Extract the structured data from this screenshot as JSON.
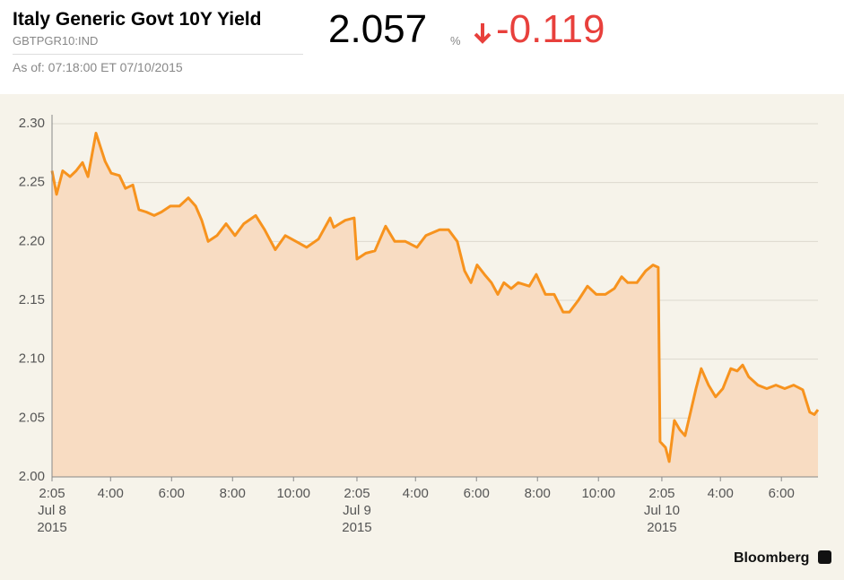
{
  "header": {
    "title": "Italy Generic Govt 10Y Yield",
    "ticker": "GBTPGR10:IND",
    "as_of": "As of: 07:18:00 ET 07/10/2015",
    "last": "2.057",
    "unit": "%",
    "change": "-0.119",
    "brand": "Bloomberg"
  },
  "chart_data": {
    "type": "line",
    "x": [
      0,
      0.15,
      0.35,
      0.59,
      0.79,
      1.0,
      1.18,
      1.32,
      1.44,
      1.59,
      1.74,
      1.94,
      2.21,
      2.41,
      2.65,
      2.85,
      3.09,
      3.35,
      3.59,
      3.88,
      4.18,
      4.47,
      4.71,
      4.91,
      5.12,
      5.41,
      5.71,
      6.0,
      6.29,
      6.68,
      6.97,
      7.32,
      7.65,
      8.0,
      8.35,
      8.74,
      9.12,
      9.24,
      9.62,
      9.91,
      10.0,
      10.29,
      10.59,
      10.94,
      11.24,
      11.59,
      11.97,
      12.26,
      12.71,
      13.0,
      13.29,
      13.53,
      13.74,
      13.94,
      14.18,
      14.41,
      14.62,
      14.82,
      15.06,
      15.29,
      15.65,
      15.88,
      16.18,
      16.47,
      16.76,
      16.97,
      17.26,
      17.56,
      17.85,
      18.15,
      18.44,
      18.68,
      18.88,
      19.18,
      19.47,
      19.71,
      19.88,
      19.94,
      20.12,
      20.24,
      20.41,
      20.59,
      20.76,
      20.94,
      21.12,
      21.29,
      21.53,
      21.76,
      22.0,
      22.26,
      22.47,
      22.65,
      22.85,
      23.15,
      23.44,
      23.74,
      24.03,
      24.32,
      24.62,
      24.85,
      25.0,
      25.12
    ],
    "values": [
      2.26,
      2.24,
      2.26,
      2.255,
      2.26,
      2.267,
      2.255,
      2.275,
      2.292,
      2.28,
      2.268,
      2.258,
      2.256,
      2.245,
      2.248,
      2.227,
      2.225,
      2.222,
      2.225,
      2.23,
      2.23,
      2.237,
      2.23,
      2.218,
      2.2,
      2.205,
      2.215,
      2.205,
      2.215,
      2.222,
      2.21,
      2.193,
      2.205,
      2.2,
      2.195,
      2.202,
      2.22,
      2.212,
      2.218,
      2.22,
      2.185,
      2.19,
      2.192,
      2.213,
      2.2,
      2.2,
      2.195,
      2.205,
      2.21,
      2.21,
      2.2,
      2.175,
      2.165,
      2.18,
      2.172,
      2.165,
      2.155,
      2.165,
      2.16,
      2.165,
      2.162,
      2.172,
      2.155,
      2.155,
      2.14,
      2.14,
      2.15,
      2.162,
      2.155,
      2.155,
      2.16,
      2.17,
      2.165,
      2.165,
      2.175,
      2.18,
      2.178,
      2.03,
      2.025,
      2.013,
      2.048,
      2.04,
      2.035,
      2.055,
      2.075,
      2.092,
      2.078,
      2.068,
      2.075,
      2.092,
      2.09,
      2.095,
      2.085,
      2.078,
      2.075,
      2.078,
      2.075,
      2.078,
      2.074,
      2.055,
      2.053,
      2.057
    ],
    "color": "#f7931e",
    "fill": "#f8dcc2",
    "xlim": [
      0,
      25.12
    ],
    "xticks": [
      {
        "value": 0,
        "label": "2:05",
        "date": "Jul 8",
        "year": "2015"
      },
      {
        "value": 1.92,
        "label": "4:00"
      },
      {
        "value": 3.92,
        "label": "6:00"
      },
      {
        "value": 5.92,
        "label": "8:00"
      },
      {
        "value": 7.92,
        "label": "10:00"
      },
      {
        "value": 10,
        "label": "2:05",
        "date": "Jul 9",
        "year": "2015"
      },
      {
        "value": 11.92,
        "label": "4:00"
      },
      {
        "value": 13.92,
        "label": "6:00"
      },
      {
        "value": 15.92,
        "label": "8:00"
      },
      {
        "value": 17.92,
        "label": "10:00"
      },
      {
        "value": 20,
        "label": "2:05",
        "date": "Jul 10",
        "year": "2015"
      },
      {
        "value": 21.92,
        "label": "4:00"
      },
      {
        "value": 23.92,
        "label": "6:00"
      }
    ],
    "ylim": [
      2.0,
      2.3
    ],
    "yticks": [
      {
        "value": 2.0,
        "label": "2.00"
      },
      2.05,
      {
        "value": 2.1,
        "label": "2.10"
      },
      2.15,
      {
        "value": 2.2,
        "label": "2.20"
      },
      2.25,
      {
        "value": 2.3,
        "label": "2.30"
      }
    ],
    "grid": true
  }
}
